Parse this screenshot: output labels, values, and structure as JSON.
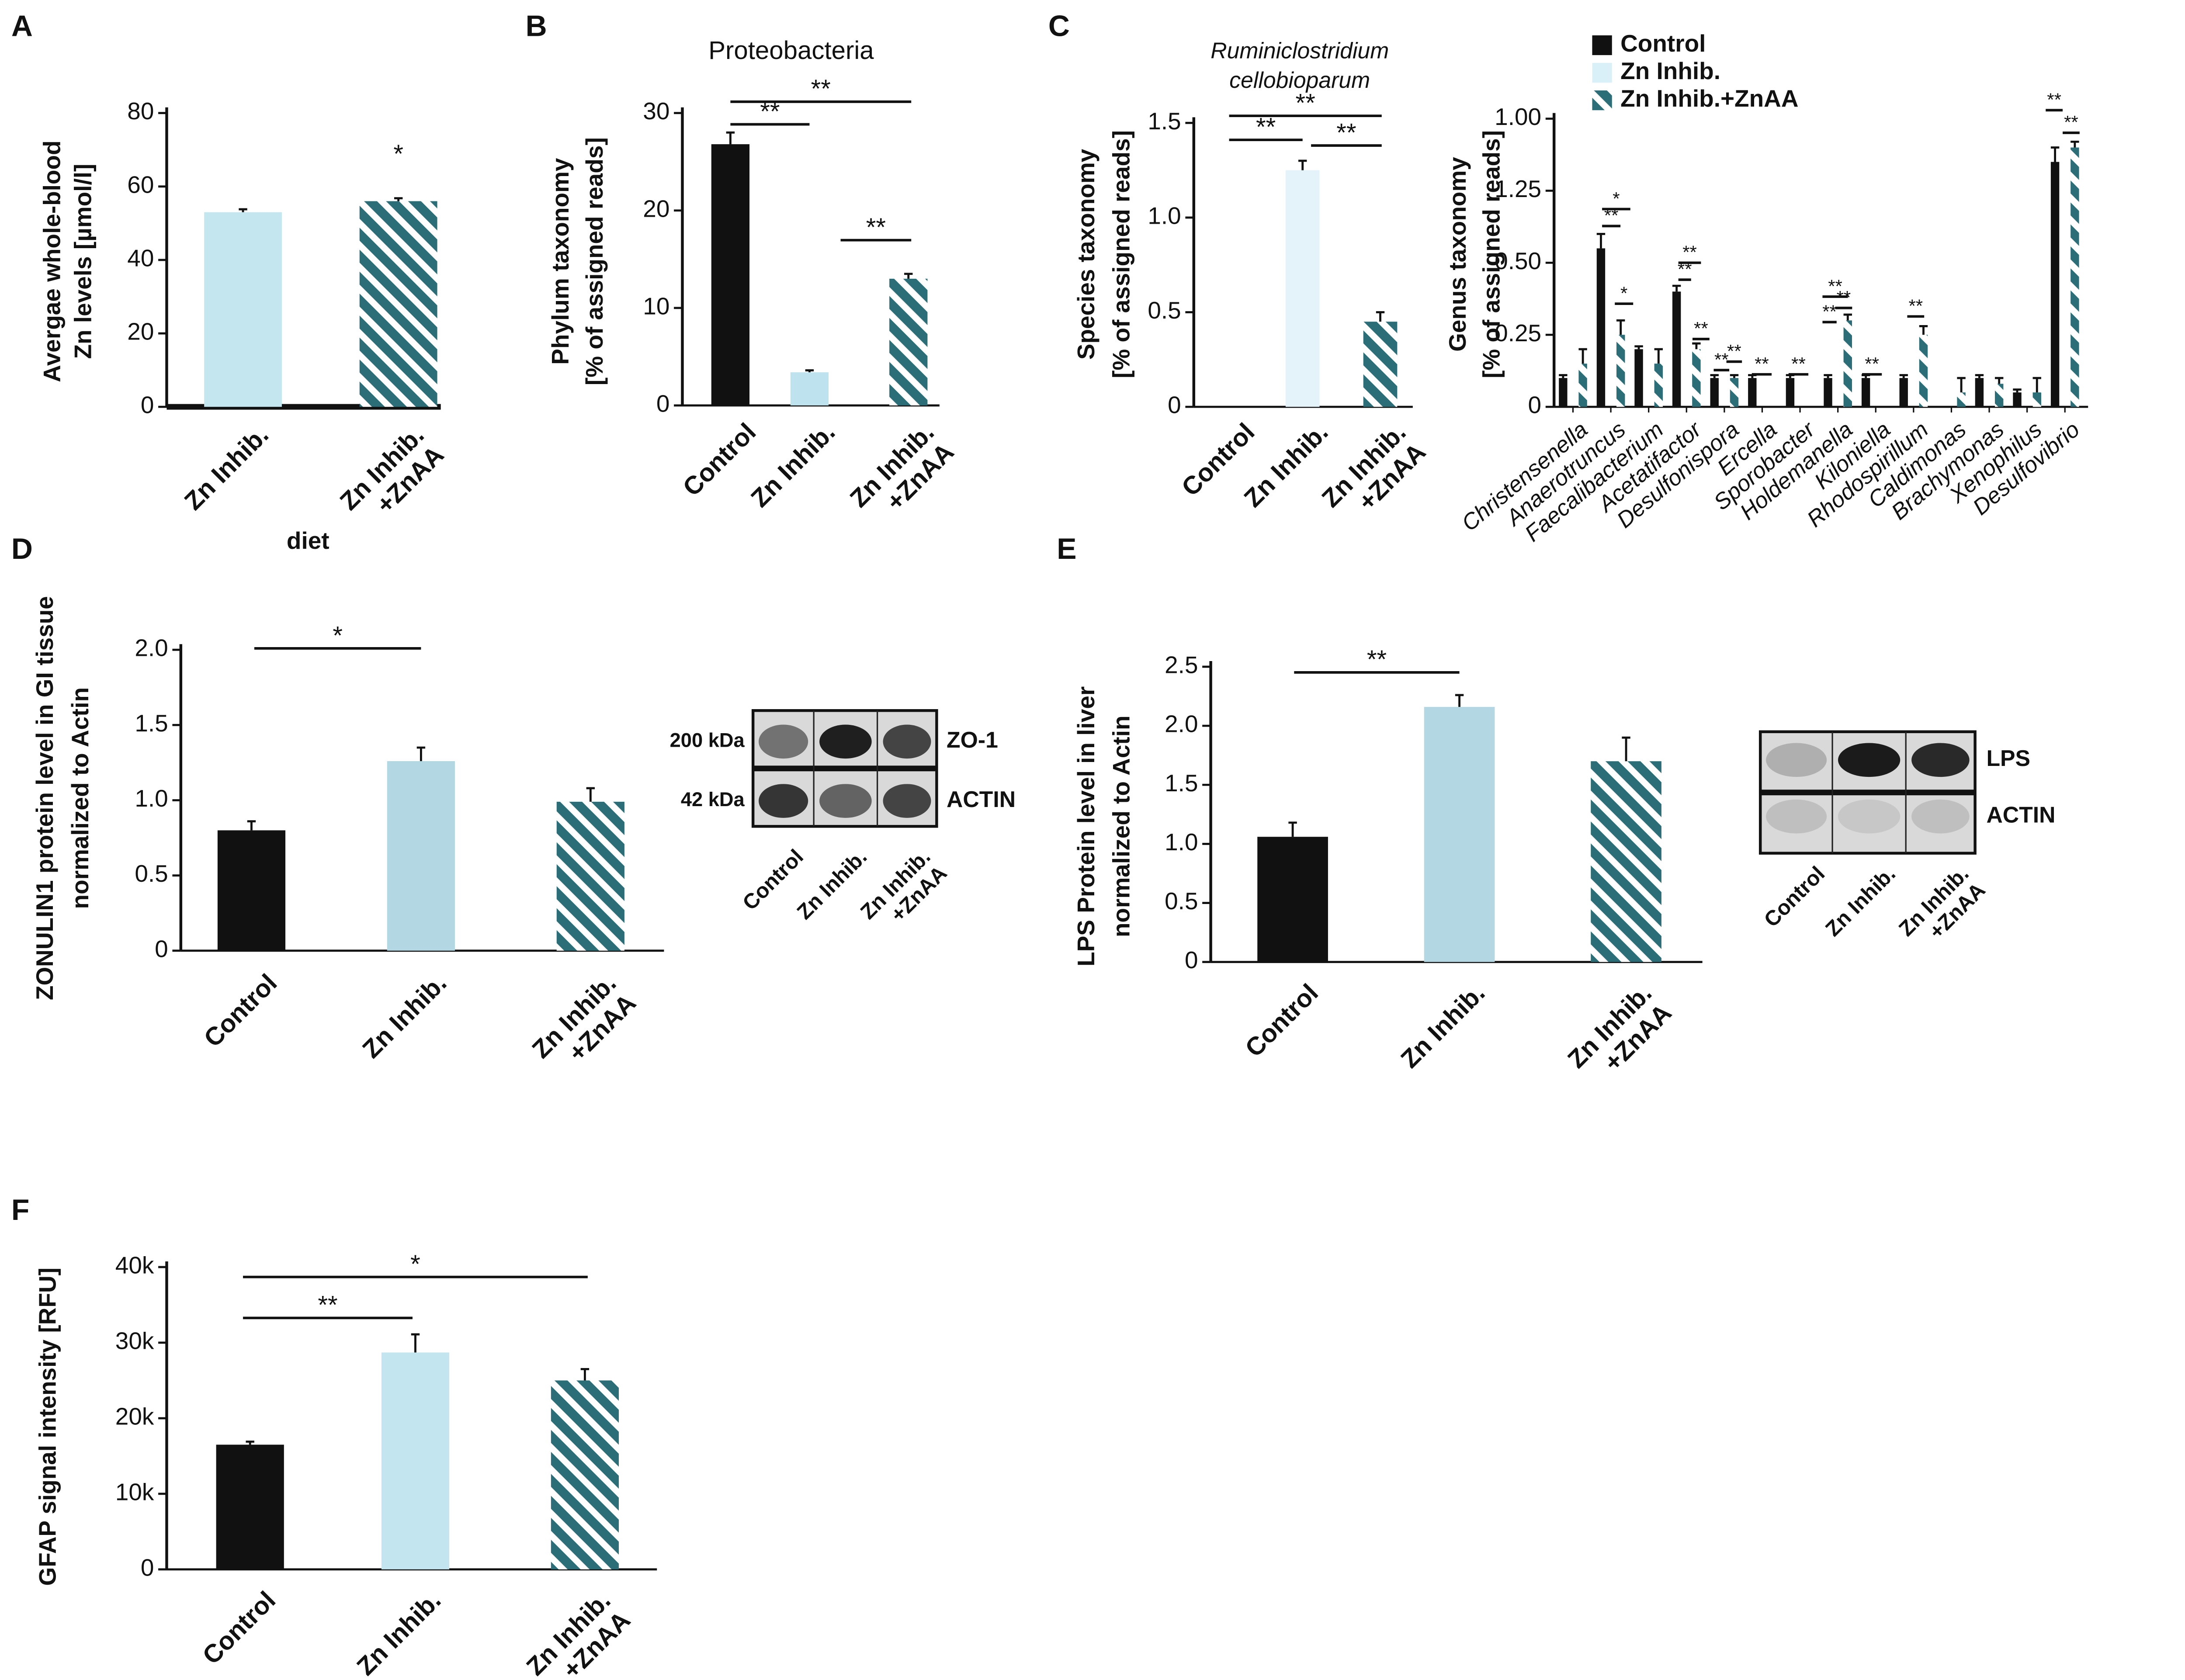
{
  "chart_data": [
    {
      "type": "bar",
      "panel": "A",
      "ylabel": [
        "Avergae whole-blood",
        "Zn levels [µmol/l]"
      ],
      "xlabel": "diet",
      "categories": [
        "Zn Inhib.",
        "Zn Inhib.\n+ZnAA"
      ],
      "values": [
        53,
        56
      ],
      "errors": [
        0.8,
        0.8
      ],
      "colors": [
        "#c4e6ef",
        "#2c6e78"
      ],
      "hatched": [
        false,
        true
      ],
      "ylim": [
        0,
        80
      ],
      "yticks": [
        0,
        20,
        40,
        60,
        80
      ],
      "annotations": [
        "*"
      ]
    },
    {
      "type": "bar",
      "panel": "B",
      "title": [
        "Proteobacteria"
      ],
      "ylabel": [
        "Phylum taxonomy",
        "[% of assigned reads]"
      ],
      "categories": [
        "Control",
        "Zn Inhib.",
        "Zn Inhib.\n+ZnAA"
      ],
      "values": [
        26.8,
        3.4,
        13
      ],
      "errors": [
        1.2,
        0.2,
        0.5
      ],
      "colors": [
        "#111111",
        "#bfe3ee",
        "#2c6e78"
      ],
      "hatched": [
        false,
        false,
        true
      ],
      "ylim": [
        0,
        30
      ],
      "yticks": [
        0,
        10,
        20,
        30
      ],
      "annotations": [
        "**",
        "**",
        "**"
      ]
    },
    {
      "type": "bar",
      "panel": "C",
      "title": [
        "Ruminiclostridium",
        "cellobioparum"
      ],
      "title_style": "italic",
      "ylabel": [
        "Species taxonomy",
        "[% of assigned reads]"
      ],
      "categories": [
        "Control",
        "Zn Inhib.",
        "Zn Inhib.\n+ZnAA"
      ],
      "values": [
        0,
        1.25,
        0.45
      ],
      "errors": [
        0,
        0.05,
        0.05
      ],
      "colors": [
        "#111111",
        "#e3f3f9",
        "#2c6e78"
      ],
      "hatched": [
        false,
        false,
        true
      ],
      "ylim": [
        0,
        1.5
      ],
      "yticks": [
        0,
        0.5,
        {
          "value": 1,
          "label": "1.0"
        },
        1.5
      ],
      "annotations": [
        "**",
        "**",
        "**"
      ]
    },
    {
      "type": "grouped-bar",
      "ylabel": [
        "Genus taxonomy",
        "[% of assigned reads]"
      ],
      "category_style": "italic",
      "categories": [
        "Christensenella",
        "Anaerotruncus",
        "Faecalibacterium",
        "Acetatifactor",
        "Desulfonispora",
        "Ercella",
        "Sporobacter",
        "Holdemanella",
        "Kiloniella",
        "Rhodospirillum",
        "Caldimonas",
        "Brachymonas",
        "Xenophilus",
        "Desulfovibrio"
      ],
      "series": [
        {
          "name": "Control",
          "color": "#111111",
          "hatched": false,
          "values": [
            0.1,
            0.55,
            0.2,
            0.4,
            0.1,
            0.1,
            0.1,
            0.1,
            0.1,
            0.1,
            0,
            0.1,
            0.05,
            0.85
          ],
          "errors": [
            0.01,
            0.05,
            0.01,
            0.02,
            0.01,
            0.01,
            0.01,
            0.01,
            0.01,
            0.01,
            0,
            0.01,
            0.01,
            0.05
          ]
        },
        {
          "name": "Zn Inhib.",
          "color": "#daf0f8",
          "hatched": false,
          "values": [
            0,
            0,
            0,
            0,
            0,
            0,
            0,
            0,
            0,
            0,
            0,
            0,
            0,
            0
          ],
          "errors": [
            0,
            0,
            0,
            0,
            0,
            0,
            0,
            0,
            0,
            0,
            0,
            0,
            0,
            0
          ]
        },
        {
          "name": "Zn Inhib.+ZnAA",
          "color": "#2c6e78",
          "hatched": true,
          "values": [
            0.15,
            0.25,
            0.15,
            0.2,
            0.1,
            0,
            0,
            0.3,
            0,
            0.25,
            0.05,
            0.08,
            0.05,
            0.9
          ],
          "errors": [
            0.05,
            0.05,
            0.05,
            0.02,
            0.01,
            0,
            0,
            0.02,
            0,
            0.03,
            0.05,
            0.02,
            0.05,
            0.02
          ]
        }
      ],
      "legend": "top-left",
      "ylim": [
        0,
        1
      ],
      "yticks": [
        0,
        0.25,
        {
          "value": 0.5,
          "label": "0.50"
        },
        {
          "value": 1.25,
          "label": "1.25"
        },
        {
          "value": 1,
          "label": "1.00"
        }
      ],
      "annotations": [
        "*",
        "**",
        "*",
        "**",
        "**",
        "**",
        "**",
        "**",
        "**",
        "**",
        "**",
        "**",
        "**",
        "**",
        "**",
        "**",
        "**"
      ]
    },
    {
      "type": "bar",
      "panel": "D",
      "ylabel": [
        "ZONULIN1 protein level in GI tissue",
        "normalized to Actin"
      ],
      "categories": [
        "Control",
        "Zn Inhib.",
        "Zn Inhib.\n+ZnAA"
      ],
      "values": [
        0.8,
        1.26,
        0.99
      ],
      "errors": [
        0.06,
        0.09,
        0.09
      ],
      "colors": [
        "#111111",
        "#b3d8e4",
        "#2c6e78"
      ],
      "hatched": [
        false,
        false,
        true
      ],
      "ylim": [
        0,
        2
      ],
      "yticks": [
        0,
        0.5,
        {
          "value": 1,
          "label": "1.0"
        },
        1.5,
        {
          "value": 2,
          "label": "2.0"
        }
      ],
      "annotations": [
        "*"
      ],
      "blot": {
        "bands": [
          "ZO-1",
          "ACTIN"
        ],
        "sizes": [
          "200 kDa",
          "42 kDa"
        ]
      }
    },
    {
      "type": "bar",
      "panel": "E",
      "ylabel": [
        "LPS Protein level in liver",
        "normalized to Actin"
      ],
      "categories": [
        "Control",
        "Zn Inhib.",
        "Zn Inhib.\n+ZnAA"
      ],
      "values": [
        1.06,
        2.16,
        1.7
      ],
      "errors": [
        0.12,
        0.1,
        0.2
      ],
      "colors": [
        "#111111",
        "#b3d8e4",
        "#2c6e78"
      ],
      "hatched": [
        false,
        false,
        true
      ],
      "ylim": [
        0,
        2.5
      ],
      "yticks": [
        0,
        0.5,
        {
          "value": 1,
          "label": "1.0"
        },
        1.5,
        {
          "value": 2,
          "label": "2.0"
        },
        2.5
      ],
      "annotations": [
        "**"
      ],
      "blot": {
        "bands": [
          "LPS",
          "ACTIN"
        ]
      }
    },
    {
      "type": "bar",
      "panel": "F",
      "ylabel": [
        "GFAP signal intensity [RFU]"
      ],
      "categories": [
        "Control",
        "Zn Inhib.",
        "Zn Inhib.\n+ZnAA"
      ],
      "values": [
        16500,
        28700,
        25000
      ],
      "errors": [
        400,
        2400,
        1500
      ],
      "colors": [
        "#111111",
        "#c2e5f0",
        "#2c6e78"
      ],
      "hatched": [
        false,
        false,
        true
      ],
      "ylim": [
        0,
        40000
      ],
      "yticks": [
        0,
        {
          "value": 10000,
          "label": "10k"
        },
        {
          "value": 20000,
          "label": "20k"
        },
        {
          "value": 30000,
          "label": "30k"
        },
        {
          "value": 40000,
          "label": "40k"
        }
      ],
      "annotations": [
        "**",
        "*"
      ]
    }
  ]
}
